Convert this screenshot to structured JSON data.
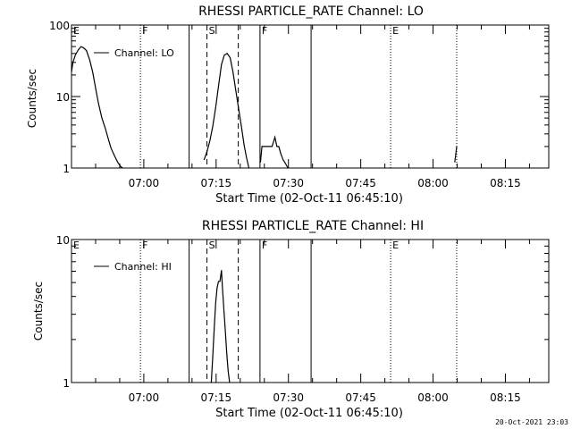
{
  "chart_data": [
    {
      "type": "line",
      "title": "RHESSI PARTICLE_RATE Channel: LO",
      "xlabel": "Start Time (02-Oct-11 06:45:10)",
      "ylabel": "Counts/sec",
      "yscale": "log",
      "ylim": [
        1,
        100
      ],
      "xlim_minutes": [
        0,
        99
      ],
      "x_ticks": [
        {
          "label": "07:00",
          "value": 15
        },
        {
          "label": "07:15",
          "value": 30
        },
        {
          "label": "07:30",
          "value": 45
        },
        {
          "label": "07:45",
          "value": 60
        },
        {
          "label": "08:00",
          "value": 75
        },
        {
          "label": "08:15",
          "value": 90
        }
      ],
      "y_ticks": [
        {
          "label": "1",
          "value": 1
        },
        {
          "label": "10",
          "value": 10
        },
        {
          "label": "100",
          "value": 100
        }
      ],
      "legend": {
        "label": "Channel: LO",
        "position": "top-left"
      },
      "markers": [
        {
          "label": "E",
          "value": 0,
          "style": "none"
        },
        {
          "label": "F",
          "value": 14.3,
          "style": "dotted"
        },
        {
          "label": "",
          "value": 24.4,
          "style": "solid"
        },
        {
          "label": "S",
          "value": 28.1,
          "style": "dashed"
        },
        {
          "label": "",
          "value": 34.6,
          "style": "dashed"
        },
        {
          "label": "F",
          "value": 39.1,
          "style": "solid"
        },
        {
          "label": "",
          "value": 49.7,
          "style": "solid"
        },
        {
          "label": "E",
          "value": 66.2,
          "style": "dotted"
        },
        {
          "label": "",
          "value": 79.9,
          "style": "dotted"
        }
      ],
      "segments": [
        {
          "x": [
            0,
            0.3,
            0.8,
            1.4,
            2.0,
            2.5,
            3.1,
            3.8,
            4.4,
            5.0,
            5.6,
            6.3,
            7.0,
            7.6,
            8.2,
            9.0,
            9.6,
            10.2,
            10.6
          ],
          "y": [
            22,
            30,
            38,
            45,
            50,
            48,
            44,
            32,
            22,
            13,
            8,
            5,
            3.6,
            2.6,
            1.9,
            1.45,
            1.2,
            1.05,
            1
          ]
        },
        {
          "x": [
            27.5,
            28.1,
            28.7,
            29.3,
            29.9,
            30.5,
            31.1,
            31.7,
            32.3,
            32.9,
            33.5,
            34.1,
            34.7,
            35.3,
            35.8,
            36.3,
            36.8
          ],
          "y": [
            1.3,
            1.7,
            2.4,
            3.8,
            7,
            14,
            28,
            38,
            40,
            35,
            22,
            12,
            6.5,
            3.6,
            2.1,
            1.4,
            1
          ]
        },
        {
          "x": [
            39.2,
            39.5,
            40.0,
            40.8,
            41.6,
            42.2,
            42.6,
            43.0,
            43.4,
            43.9,
            44.4,
            44.9
          ],
          "y": [
            1.2,
            2.0,
            2.0,
            2.0,
            2.0,
            2.7,
            2.0,
            2.0,
            1.6,
            1.3,
            1.15,
            1
          ]
        },
        {
          "x": [
            79.5,
            79.9
          ],
          "y": [
            1.2,
            2.0
          ]
        }
      ]
    },
    {
      "type": "line",
      "title": "RHESSI PARTICLE_RATE Channel: HI",
      "xlabel": "Start Time (02-Oct-11 06:45:10)",
      "ylabel": "Counts/sec",
      "yscale": "log",
      "ylim": [
        1,
        10
      ],
      "xlim_minutes": [
        0,
        99
      ],
      "x_ticks": [
        {
          "label": "07:00",
          "value": 15
        },
        {
          "label": "07:15",
          "value": 30
        },
        {
          "label": "07:30",
          "value": 45
        },
        {
          "label": "07:45",
          "value": 60
        },
        {
          "label": "08:00",
          "value": 75
        },
        {
          "label": "08:15",
          "value": 90
        }
      ],
      "y_ticks": [
        {
          "label": "1",
          "value": 1
        },
        {
          "label": "10",
          "value": 10
        }
      ],
      "legend": {
        "label": "Channel: HI",
        "position": "top-left"
      },
      "markers": [
        {
          "label": "E",
          "value": 0,
          "style": "none"
        },
        {
          "label": "F",
          "value": 14.3,
          "style": "dotted"
        },
        {
          "label": "",
          "value": 24.4,
          "style": "solid"
        },
        {
          "label": "S",
          "value": 28.1,
          "style": "dashed"
        },
        {
          "label": "",
          "value": 34.6,
          "style": "dashed"
        },
        {
          "label": "F",
          "value": 39.1,
          "style": "solid"
        },
        {
          "label": "",
          "value": 49.7,
          "style": "solid"
        },
        {
          "label": "E",
          "value": 66.2,
          "style": "dotted"
        },
        {
          "label": "",
          "value": 79.9,
          "style": "dotted"
        }
      ],
      "segments": [
        {
          "x": [
            29.0,
            29.3,
            29.6,
            29.9,
            30.2,
            30.5,
            30.8,
            31.1,
            31.3,
            31.6,
            31.9,
            32.2,
            32.5,
            32.8
          ],
          "y": [
            1,
            1.5,
            2.4,
            3.6,
            4.6,
            5.1,
            5.1,
            6.1,
            4.7,
            3.3,
            2.3,
            1.6,
            1.2,
            1
          ]
        }
      ]
    }
  ],
  "footer_timestamp": "20-Oct-2021 23:03"
}
